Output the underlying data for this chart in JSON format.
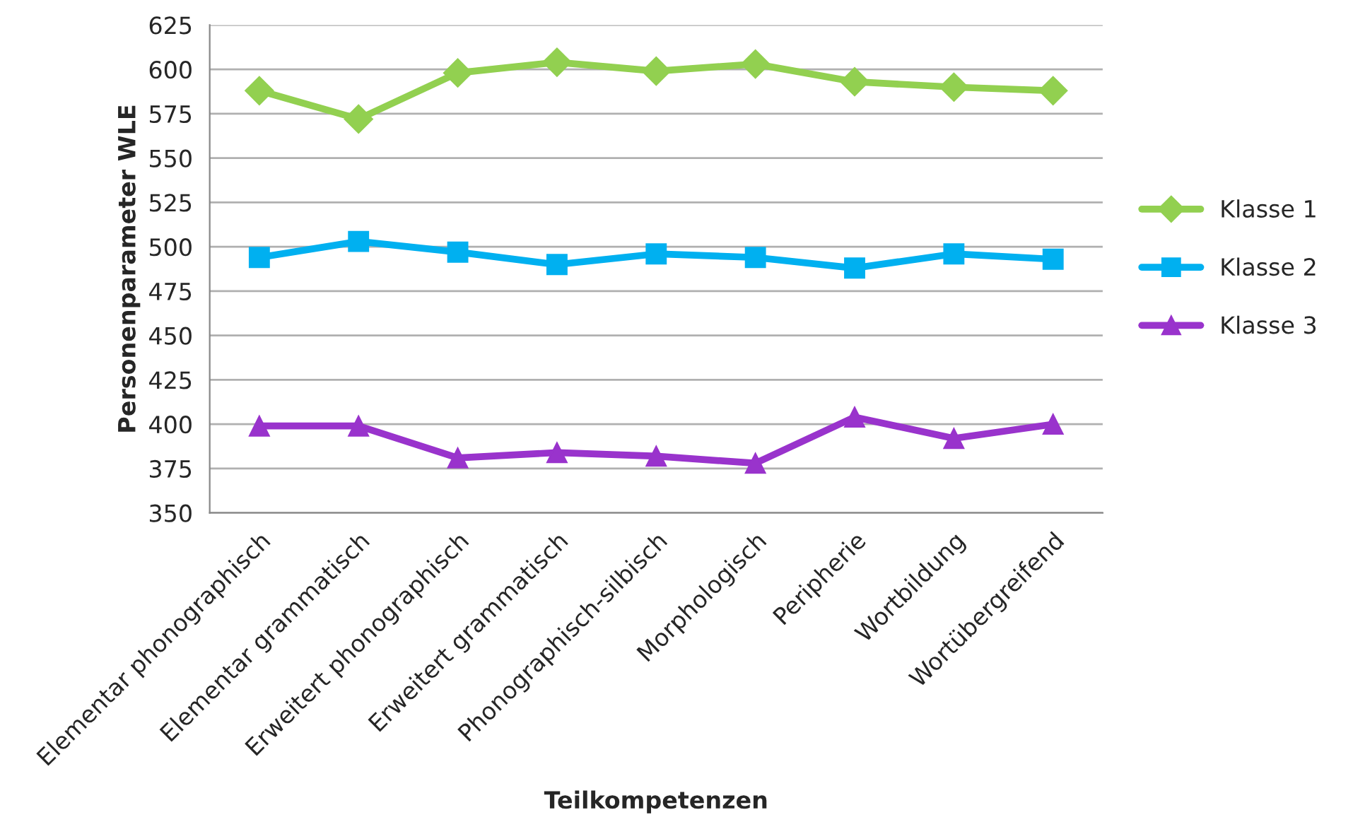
{
  "chart_data": {
    "type": "line",
    "xlabel": "Teilkompetenzen",
    "ylabel": "Personenparameter WLE",
    "categories": [
      "Elementar phonographisch",
      "Elementar grammatisch",
      "Erweitert phonographisch",
      "Erweitert grammatisch",
      "Phonographisch-silbisch",
      "Morphologisch",
      "Peripherie",
      "Wortbildung",
      "Wortübergreifend"
    ],
    "series": [
      {
        "name": "Klasse 1",
        "color": "#92d050",
        "marker": "diamond",
        "values": [
          588,
          572,
          598,
          604,
          599,
          603,
          593,
          590,
          588
        ]
      },
      {
        "name": "Klasse 2",
        "color": "#00b0f0",
        "marker": "square",
        "values": [
          494,
          503,
          497,
          490,
          496,
          494,
          488,
          496,
          493
        ]
      },
      {
        "name": "Klasse 3",
        "color": "#9933cc",
        "marker": "triangle",
        "values": [
          399,
          399,
          381,
          384,
          382,
          378,
          404,
          392,
          400
        ]
      }
    ],
    "ylim": [
      350,
      625
    ],
    "yticks": [
      350,
      375,
      400,
      425,
      450,
      475,
      500,
      525,
      550,
      575,
      600,
      625
    ],
    "grid": "y",
    "legend": "right",
    "line_style": "solid"
  }
}
